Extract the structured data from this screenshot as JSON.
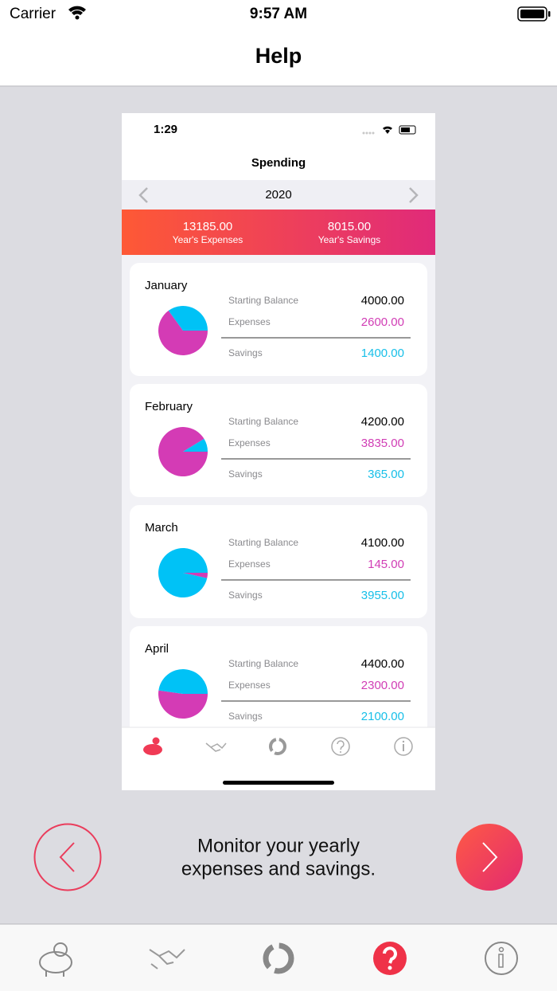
{
  "status_bar": {
    "carrier": "Carrier",
    "time": "9:57 AM"
  },
  "nav": {
    "title": "Help"
  },
  "screenshot": {
    "status_time": "1:29",
    "title": "Spending",
    "year": "2020",
    "summary": [
      {
        "value": "13185.00",
        "label": "Year's Expenses"
      },
      {
        "value": "8015.00",
        "label": "Year's Savings"
      }
    ],
    "months": [
      {
        "name": "January",
        "starting_balance_label": "Starting Balance",
        "starting_balance": "4000.00",
        "expenses_label": "Expenses",
        "expenses": "2600.00",
        "savings_label": "Savings",
        "savings": "1400.00"
      },
      {
        "name": "February",
        "starting_balance_label": "Starting Balance",
        "starting_balance": "4200.00",
        "expenses_label": "Expenses",
        "expenses": "3835.00",
        "savings_label": "Savings",
        "savings": "365.00"
      },
      {
        "name": "March",
        "starting_balance_label": "Starting Balance",
        "starting_balance": "4100.00",
        "expenses_label": "Expenses",
        "expenses": "145.00",
        "savings_label": "Savings",
        "savings": "3955.00"
      },
      {
        "name": "April",
        "starting_balance_label": "Starting Balance",
        "starting_balance": "4400.00",
        "expenses_label": "Expenses",
        "expenses": "2300.00",
        "savings_label": "Savings",
        "savings": "2100.00"
      }
    ]
  },
  "caption": [
    "Monitor your yearly",
    "expenses and savings."
  ]
}
